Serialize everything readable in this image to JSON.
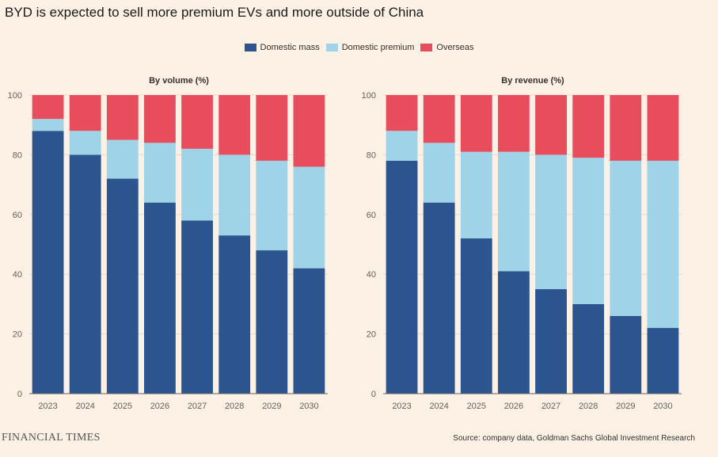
{
  "title": "BYD is expected to sell more premium EVs and more outside of China",
  "legend": [
    {
      "label": "Domestic mass",
      "color": "#2c5590"
    },
    {
      "label": "Domestic premium",
      "color": "#9fd3e8"
    },
    {
      "label": "Overseas",
      "color": "#e74d5c"
    }
  ],
  "footer": {
    "logo": "FINANCIAL TIMES",
    "source": "Source: company data, Goldman Sachs Global Investment Research"
  },
  "chart_data": [
    {
      "type": "bar",
      "stacked": true,
      "title": "By volume (%)",
      "categories": [
        "2023",
        "2024",
        "2025",
        "2026",
        "2027",
        "2028",
        "2029",
        "2030"
      ],
      "series": [
        {
          "name": "Domestic mass",
          "values": [
            88,
            80,
            72,
            64,
            58,
            53,
            48,
            42
          ]
        },
        {
          "name": "Domestic premium",
          "values": [
            4,
            8,
            13,
            20,
            24,
            27,
            30,
            34
          ]
        },
        {
          "name": "Overseas",
          "values": [
            8,
            12,
            15,
            16,
            18,
            20,
            22,
            24
          ]
        }
      ],
      "ylim": [
        0,
        100
      ],
      "yticks": [
        "0",
        "20",
        "40",
        "60",
        "80",
        "100"
      ]
    },
    {
      "type": "bar",
      "stacked": true,
      "title": "By revenue (%)",
      "categories": [
        "2023",
        "2024",
        "2025",
        "2026",
        "2027",
        "2028",
        "2029",
        "2030"
      ],
      "series": [
        {
          "name": "Domestic mass",
          "values": [
            78,
            64,
            52,
            41,
            35,
            30,
            26,
            22
          ]
        },
        {
          "name": "Domestic premium",
          "values": [
            10,
            20,
            29,
            40,
            45,
            49,
            52,
            56
          ]
        },
        {
          "name": "Overseas",
          "values": [
            12,
            16,
            19,
            19,
            20,
            21,
            22,
            22
          ]
        }
      ],
      "ylim": [
        0,
        100
      ],
      "yticks": [
        "0",
        "20",
        "40",
        "60",
        "80",
        "100"
      ]
    }
  ]
}
